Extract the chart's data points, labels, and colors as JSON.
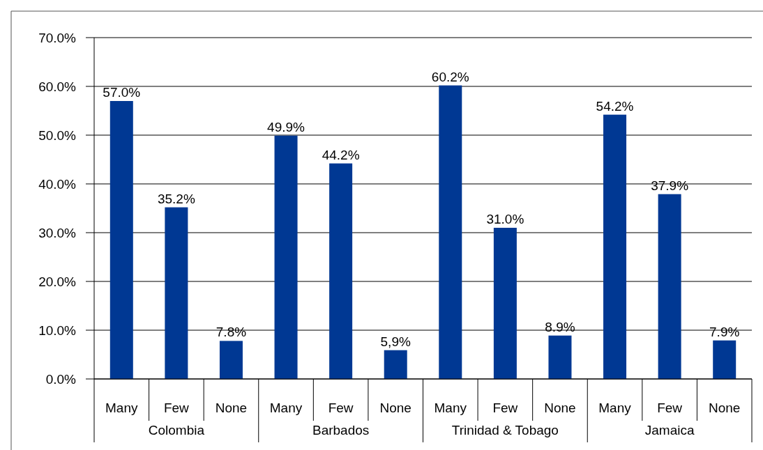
{
  "chart_data": {
    "type": "bar",
    "categories": [
      "Many",
      "Few",
      "None",
      "Many",
      "Few",
      "None",
      "Many",
      "Few",
      "None",
      "Many",
      "Few",
      "None"
    ],
    "values": [
      57.0,
      35.2,
      7.8,
      49.9,
      44.2,
      5.9,
      60.2,
      31.0,
      8.9,
      54.2,
      37.9,
      7.9
    ],
    "value_labels": [
      "57.0%",
      "35.2%",
      "7.8%",
      "49.9%",
      "44.2%",
      "5,9%",
      "60.2%",
      "31.0%",
      "8.9%",
      "54.2%",
      "37.9%",
      "7.9%"
    ],
    "color": "#003893",
    "ylim": [
      0,
      70
    ],
    "yticks": [
      {
        "value": 0,
        "label": "0.0%"
      },
      {
        "value": 10,
        "label": "10.0%"
      },
      {
        "value": 20,
        "label": "20.0%"
      },
      {
        "value": 30,
        "label": "30.0%"
      },
      {
        "value": 40,
        "label": "40.0%"
      },
      {
        "value": 50,
        "label": "50.0%"
      },
      {
        "value": 60,
        "label": "60.0%"
      },
      {
        "value": 70,
        "label": "70.0%"
      }
    ],
    "grid": "y",
    "annotations": [
      "Colombia",
      "Barbados",
      "Trinidad & Tobago",
      "Jamaica"
    ]
  }
}
